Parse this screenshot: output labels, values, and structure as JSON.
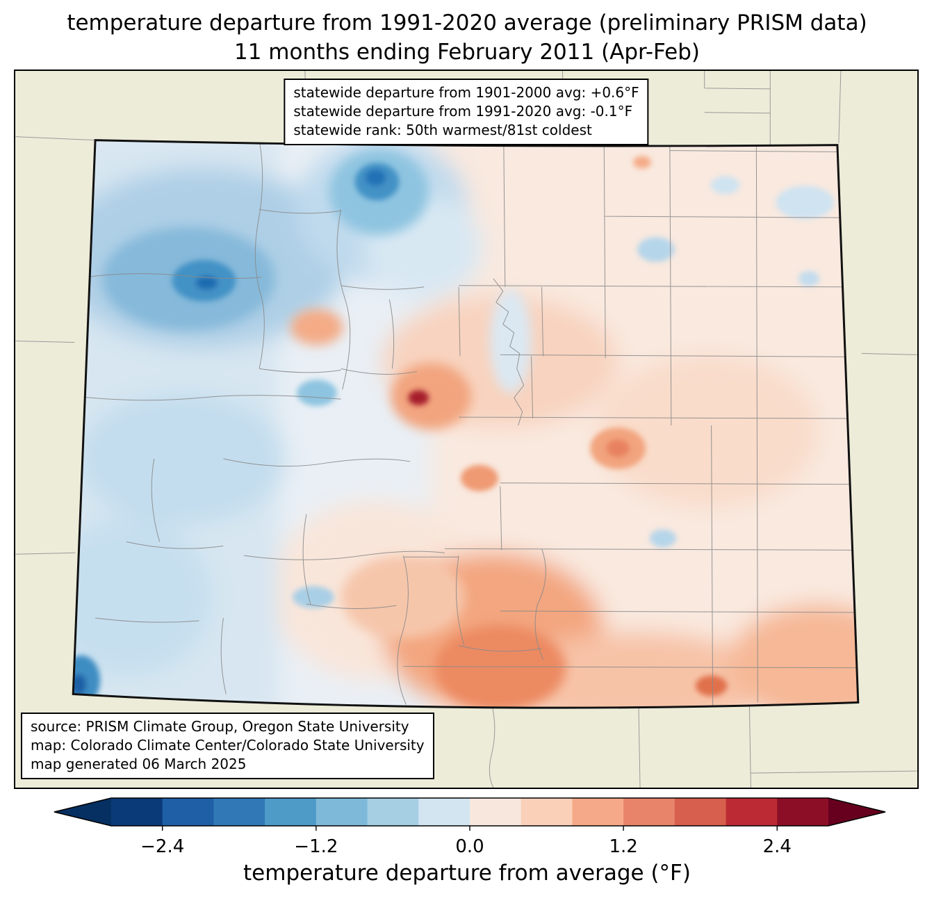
{
  "title": {
    "line1": "temperature departure from 1991-2020 average (preliminary PRISM data)",
    "line2": "11 months ending February 2011 (Apr-Feb)"
  },
  "stats_box": {
    "lines": [
      "statewide departure from 1901-2000 avg: +0.6°F",
      "statewide departure from 1991-2020 avg: -0.1°F",
      "statewide rank: 50th warmest/81st coldest"
    ]
  },
  "source_box": {
    "lines": [
      "source: PRISM Climate Group, Oregon State University",
      "map: Colorado Climate Center/Colorado State University",
      "map generated 06 March 2025"
    ]
  },
  "map": {
    "region": "Colorado",
    "outside_fill": "#edecd9",
    "state_outline_color": "#111111",
    "county_line_color": "#8a8a8a"
  },
  "colorbar": {
    "label": "temperature departure from average (°F)",
    "range": [
      -2.8,
      2.8
    ],
    "tick_values": [
      -2.4,
      -1.2,
      0.0,
      1.2,
      2.4
    ],
    "tick_labels": [
      "−2.4",
      "−1.2",
      "0.0",
      "1.2",
      "2.4"
    ],
    "left_arrow_color": "#053061",
    "right_arrow_color": "#67001f",
    "segment_colors": [
      "#0a3a78",
      "#1f5fa5",
      "#3079b6",
      "#4f9bc7",
      "#7fb9d9",
      "#a7cfe4",
      "#d2e5f0",
      "#f7e7dc",
      "#fbd0b9",
      "#f5a989",
      "#e8846a",
      "#d75f4e",
      "#bc2b34",
      "#8c0e26"
    ]
  }
}
